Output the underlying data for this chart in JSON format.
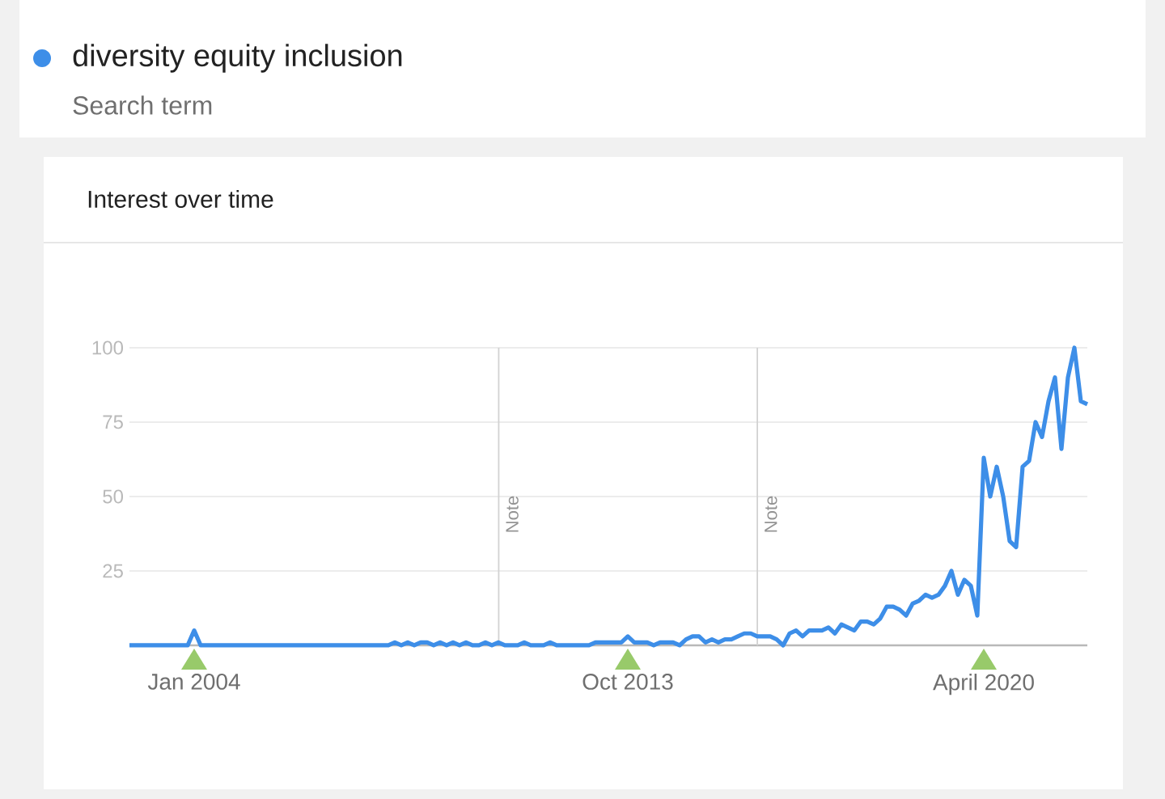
{
  "chart_data": {
    "type": "line",
    "title": "Interest over time",
    "legend_title": "Search term",
    "legend": "top left",
    "categories": [
      null,
      null,
      null,
      null,
      null,
      null,
      null,
      null,
      null,
      null,
      "Jan 2004",
      null,
      null,
      null,
      null,
      null,
      null,
      null,
      null,
      null,
      null,
      null,
      null,
      null,
      null,
      null,
      null,
      null,
      null,
      null,
      null,
      null,
      null,
      null,
      null,
      null,
      null,
      null,
      null,
      null,
      null,
      null,
      null,
      null,
      null,
      null,
      null,
      null,
      null,
      null,
      null,
      null,
      null,
      null,
      null,
      null,
      null,
      null,
      null,
      null,
      null,
      null,
      null,
      null,
      null,
      null,
      null,
      null,
      null,
      null,
      null,
      null,
      null,
      null,
      null,
      null,
      null,
      "Oct 2013",
      null,
      null,
      null,
      null,
      null,
      null,
      null,
      null,
      null,
      null,
      null,
      null,
      null,
      null,
      null,
      null,
      null,
      null,
      null,
      null,
      null,
      null,
      null,
      null,
      null,
      null,
      null,
      null,
      null,
      null,
      null,
      null,
      null,
      null,
      null,
      null,
      null,
      null,
      null,
      null,
      null,
      null,
      null,
      null,
      null,
      null,
      null,
      null,
      null,
      null,
      null,
      null,
      null,
      null,
      "April 2020",
      null,
      null,
      null,
      null,
      null,
      null,
      null,
      null,
      null,
      null,
      null,
      null,
      null,
      null,
      null,
      null
    ],
    "series": [
      {
        "name": "diversity equity inclusion",
        "color": "#3d8ee8",
        "values": [
          0,
          0,
          0,
          0,
          0,
          0,
          0,
          0,
          0,
          0,
          5,
          0,
          0,
          0,
          0,
          0,
          0,
          0,
          0,
          0,
          0,
          0,
          0,
          0,
          0,
          0,
          0,
          0,
          0,
          0,
          0,
          0,
          0,
          0,
          0,
          0,
          0,
          0,
          0,
          0,
          0,
          1,
          0,
          1,
          0,
          1,
          1,
          0,
          1,
          0,
          1,
          0,
          1,
          0,
          0,
          1,
          0,
          1,
          0,
          0,
          0,
          1,
          0,
          0,
          0,
          1,
          0,
          0,
          0,
          0,
          0,
          0,
          1,
          1,
          1,
          1,
          1,
          3,
          1,
          1,
          1,
          0,
          1,
          1,
          1,
          0,
          2,
          3,
          3,
          1,
          2,
          1,
          2,
          2,
          3,
          4,
          4,
          3,
          3,
          3,
          2,
          0,
          4,
          5,
          3,
          5,
          5,
          5,
          6,
          4,
          7,
          6,
          5,
          8,
          8,
          7,
          9,
          13,
          13,
          12,
          10,
          14,
          15,
          17,
          16,
          17,
          20,
          25,
          17,
          22,
          20,
          10,
          63,
          50,
          60,
          50,
          35,
          33,
          60,
          62,
          75,
          70,
          82,
          90,
          66,
          90,
          100,
          82,
          81
        ]
      }
    ],
    "ylim": [
      0,
      100
    ],
    "yticks": [
      25,
      50,
      75,
      100
    ],
    "grid": "y",
    "annotations": [
      "Note",
      "Note"
    ]
  }
}
